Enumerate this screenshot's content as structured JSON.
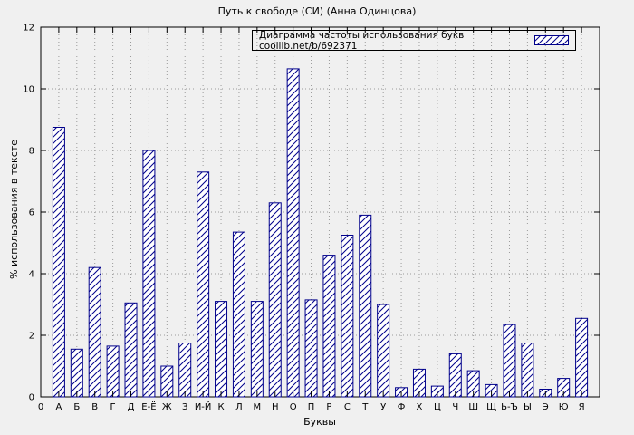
{
  "chart_data": {
    "type": "bar",
    "title": "Путь к свободе (СИ) (Анна Одинцова)",
    "legend": "Диаграмма частоты использования букв coollib.net/b/692371",
    "legend_position": "top-right",
    "xlabel": "Буквы",
    "ylabel": "% использования в тексте",
    "x_origin_label": "0",
    "categories": [
      "А",
      "Б",
      "В",
      "Г",
      "Д",
      "Е-Ё",
      "Ж",
      "З",
      "И-Й",
      "К",
      "Л",
      "М",
      "Н",
      "О",
      "П",
      "Р",
      "С",
      "Т",
      "У",
      "Ф",
      "Х",
      "Ц",
      "Ч",
      "Ш",
      "Щ",
      "Ь-Ъ",
      "Ы",
      "Э",
      "Ю",
      "Я"
    ],
    "values": [
      8.75,
      1.55,
      4.2,
      1.65,
      3.05,
      8.0,
      1.0,
      1.75,
      7.3,
      3.1,
      5.35,
      3.1,
      6.3,
      10.65,
      3.15,
      4.6,
      5.25,
      5.9,
      3.0,
      0.3,
      0.9,
      0.35,
      1.4,
      0.85,
      0.4,
      2.35,
      1.75,
      0.25,
      0.6,
      2.55
    ],
    "ylim": [
      0,
      12
    ],
    "yticks": [
      0,
      2,
      4,
      6,
      8,
      10,
      12
    ],
    "grid": true,
    "bar_color": "#00008b",
    "bar_fill": "#ffffff",
    "hatch": "diagonal",
    "background": "#f0f0f0"
  }
}
